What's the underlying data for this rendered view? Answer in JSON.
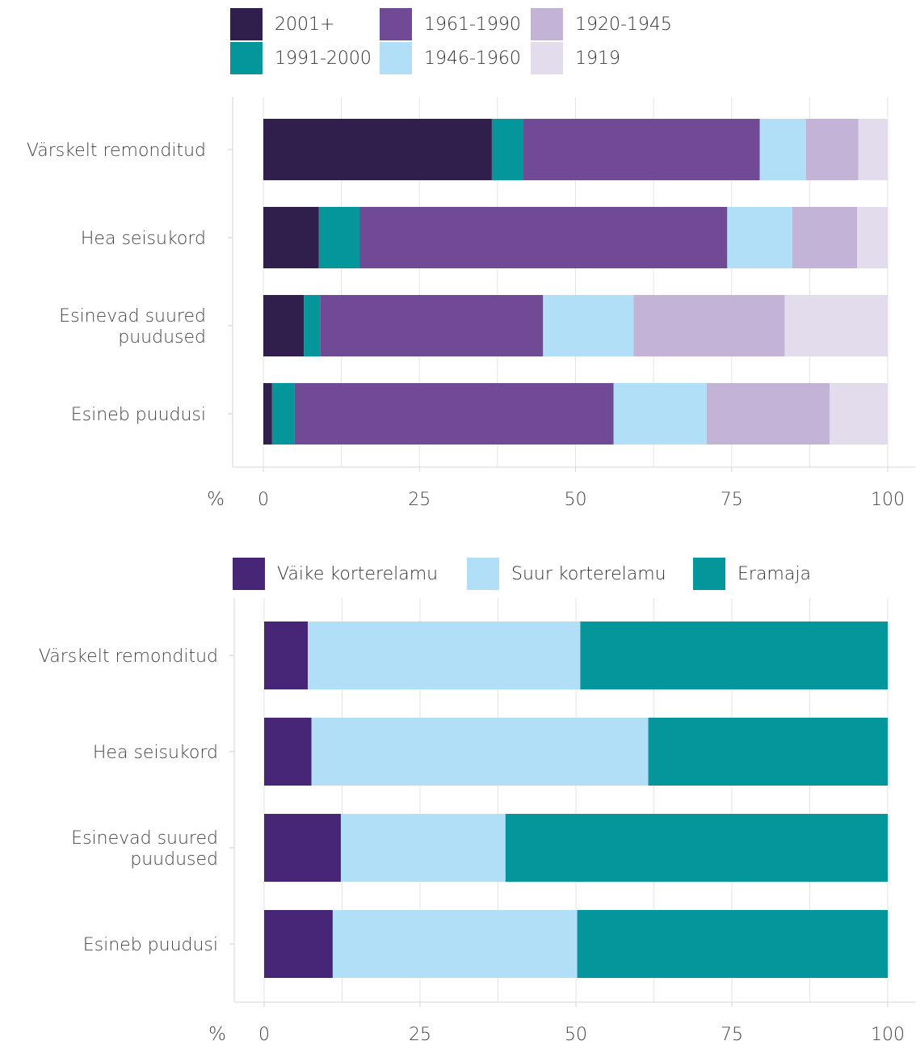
{
  "chart_data": [
    {
      "type": "bar",
      "orientation": "horizontal",
      "stacked": true,
      "categories": [
        "Värskelt remonditud",
        "Hea seisukord",
        "Esinevad suured\npuudused",
        "Esineb puudusi"
      ],
      "series": [
        {
          "name": "2001+",
          "color": "#301f4c",
          "values": [
            36.6,
            8.9,
            6.5,
            1.4
          ]
        },
        {
          "name": "1991-2000",
          "color": "#05969b",
          "values": [
            5.0,
            6.5,
            2.6,
            3.6
          ]
        },
        {
          "name": "1961-1990",
          "color": "#714a96",
          "values": [
            37.9,
            58.9,
            35.7,
            51.1
          ]
        },
        {
          "name": "1946-1960",
          "color": "#b1dff7",
          "values": [
            7.4,
            10.4,
            14.5,
            14.9
          ]
        },
        {
          "name": "1920-1945",
          "color": "#c3b3d6",
          "values": [
            8.4,
            10.4,
            24.2,
            19.7
          ]
        },
        {
          "name": "1919",
          "color": "#e2dcec",
          "values": [
            4.7,
            4.9,
            16.5,
            9.3
          ]
        }
      ],
      "xlabel": "%",
      "xlim": [
        0,
        100
      ],
      "xticks": [
        0,
        25,
        50,
        75,
        100
      ],
      "grid": true,
      "legend_position": "top"
    },
    {
      "type": "bar",
      "orientation": "horizontal",
      "stacked": true,
      "categories": [
        "Värskelt remonditud",
        "Hea seisukord",
        "Esinevad suured\npuudused",
        "Esineb puudusi"
      ],
      "series": [
        {
          "name": "Väike korterelamu",
          "color": "#472678",
          "values": [
            7.0,
            7.6,
            12.3,
            11.0
          ]
        },
        {
          "name": "Suur korterelamu",
          "color": "#b1dff7",
          "values": [
            43.7,
            54.0,
            26.4,
            39.2
          ]
        },
        {
          "name": "Eramaja",
          "color": "#05969b",
          "values": [
            49.3,
            38.4,
            61.3,
            49.8
          ]
        }
      ],
      "xlabel": "%",
      "xlim": [
        0,
        100
      ],
      "xticks": [
        0,
        25,
        50,
        75,
        100
      ],
      "grid": true,
      "legend_position": "top"
    }
  ]
}
